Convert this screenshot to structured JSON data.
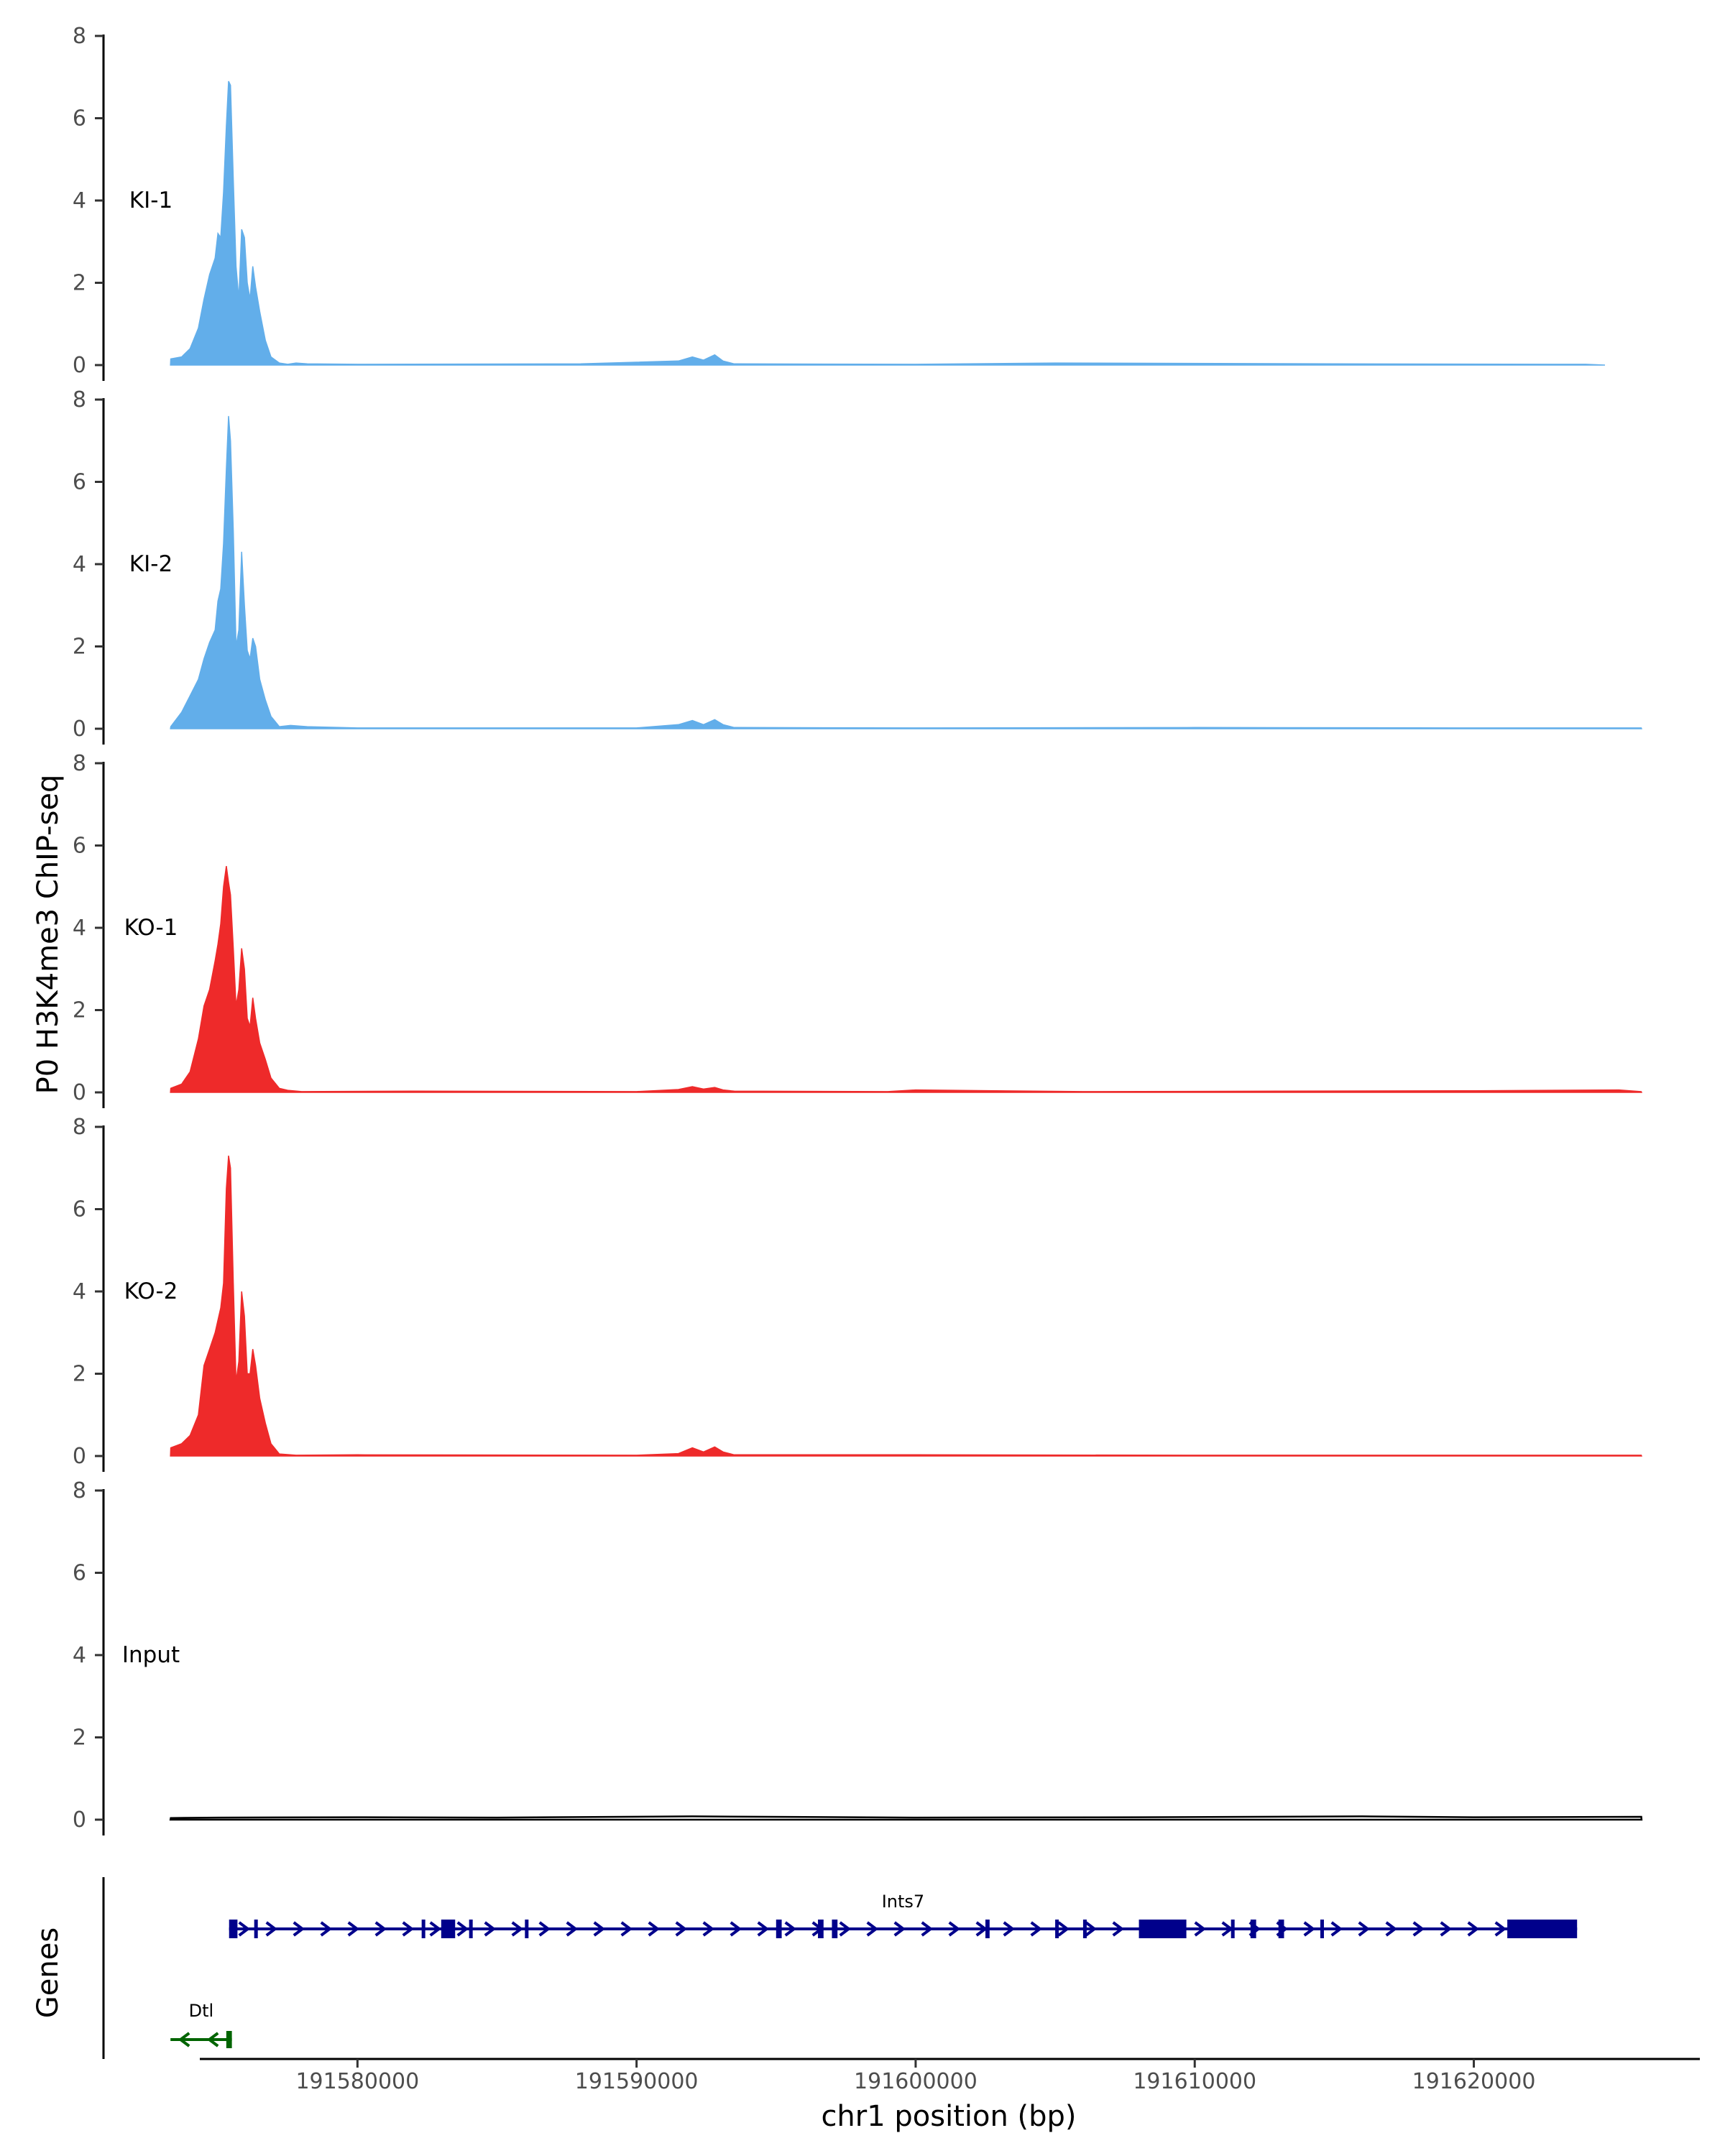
{
  "chart_data": {
    "type": "area",
    "title": "",
    "ylabel": "P0 H3K4me3 ChIP-seq",
    "xlabel": "chr1 position (bp)",
    "genes_label": "Genes",
    "ylim": [
      0,
      8
    ],
    "yticks": [
      0,
      2,
      4,
      6,
      8
    ],
    "xlim": [
      191570900,
      191629000
    ],
    "xticks": [
      191580000,
      191590000,
      191600000,
      191610000,
      191620000
    ],
    "xtick_labels": [
      "191580000",
      "191590000",
      "191600000",
      "191610000",
      "191620000"
    ],
    "colors": {
      "KI": "#62aeea",
      "KO": "#ee2a2a",
      "Input": "#000000",
      "Ints7": "#00008b",
      "Dtl": "#006400"
    },
    "tracks": [
      {
        "name": "KI-1",
        "color": "#62aeea",
        "points": [
          [
            191573300,
            0
          ],
          [
            191573310,
            0.15
          ],
          [
            191573700,
            0.2
          ],
          [
            191574000,
            0.4
          ],
          [
            191574300,
            0.9
          ],
          [
            191574500,
            1.6
          ],
          [
            191574700,
            2.2
          ],
          [
            191574900,
            2.6
          ],
          [
            191575000,
            3.2
          ],
          [
            191575100,
            3.1
          ],
          [
            191575200,
            4.2
          ],
          [
            191575300,
            5.8
          ],
          [
            191575380,
            6.9
          ],
          [
            191575450,
            6.8
          ],
          [
            191575550,
            4.5
          ],
          [
            191575650,
            2.4
          ],
          [
            191575750,
            1.6
          ],
          [
            191575850,
            3.3
          ],
          [
            191575950,
            3.1
          ],
          [
            191576050,
            2.0
          ],
          [
            191576150,
            1.6
          ],
          [
            191576250,
            2.4
          ],
          [
            191576350,
            1.9
          ],
          [
            191576500,
            1.3
          ],
          [
            191576700,
            0.6
          ],
          [
            191576900,
            0.2
          ],
          [
            191577200,
            0.05
          ],
          [
            191577500,
            0.02
          ],
          [
            191577800,
            0.05
          ],
          [
            191578200,
            0.03
          ],
          [
            191580000,
            0.02
          ],
          [
            191588000,
            0.03
          ],
          [
            191591500,
            0.1
          ],
          [
            191592000,
            0.2
          ],
          [
            191592400,
            0.12
          ],
          [
            191592800,
            0.25
          ],
          [
            191593100,
            0.1
          ],
          [
            191593500,
            0.03
          ],
          [
            191600000,
            0.02
          ],
          [
            191605000,
            0.05
          ],
          [
            191615000,
            0.03
          ],
          [
            191624000,
            0.02
          ],
          [
            191624700,
            0
          ]
        ]
      },
      {
        "name": "KI-2",
        "color": "#62aeea",
        "points": [
          [
            191573300,
            0
          ],
          [
            191573310,
            0.05
          ],
          [
            191573700,
            0.4
          ],
          [
            191574000,
            0.8
          ],
          [
            191574300,
            1.2
          ],
          [
            191574500,
            1.7
          ],
          [
            191574700,
            2.1
          ],
          [
            191574900,
            2.4
          ],
          [
            191575000,
            3.1
          ],
          [
            191575100,
            3.4
          ],
          [
            191575200,
            4.5
          ],
          [
            191575300,
            6.3
          ],
          [
            191575380,
            7.6
          ],
          [
            191575450,
            7.0
          ],
          [
            191575550,
            4.8
          ],
          [
            191575650,
            2.0
          ],
          [
            191575750,
            2.4
          ],
          [
            191575850,
            4.3
          ],
          [
            191575950,
            3.0
          ],
          [
            191576050,
            1.9
          ],
          [
            191576150,
            1.7
          ],
          [
            191576250,
            2.2
          ],
          [
            191576350,
            2.0
          ],
          [
            191576500,
            1.2
          ],
          [
            191576700,
            0.7
          ],
          [
            191576900,
            0.3
          ],
          [
            191577200,
            0.05
          ],
          [
            191577600,
            0.08
          ],
          [
            191578200,
            0.05
          ],
          [
            191580000,
            0.02
          ],
          [
            191590000,
            0.02
          ],
          [
            191591500,
            0.1
          ],
          [
            191592000,
            0.2
          ],
          [
            191592400,
            0.1
          ],
          [
            191592800,
            0.22
          ],
          [
            191593100,
            0.1
          ],
          [
            191593500,
            0.03
          ],
          [
            191600000,
            0.02
          ],
          [
            191610000,
            0.03
          ],
          [
            191620000,
            0.02
          ],
          [
            191626000,
            0.02
          ],
          [
            191626010,
            0
          ]
        ]
      },
      {
        "name": "KO-1",
        "color": "#ee2a2a",
        "points": [
          [
            191573300,
            0
          ],
          [
            191573310,
            0.1
          ],
          [
            191573700,
            0.2
          ],
          [
            191574000,
            0.5
          ],
          [
            191574300,
            1.3
          ],
          [
            191574500,
            2.1
          ],
          [
            191574700,
            2.5
          ],
          [
            191574900,
            3.2
          ],
          [
            191575000,
            3.6
          ],
          [
            191575100,
            4.1
          ],
          [
            191575200,
            5.0
          ],
          [
            191575300,
            5.5
          ],
          [
            191575380,
            5.1
          ],
          [
            191575450,
            4.8
          ],
          [
            191575550,
            3.5
          ],
          [
            191575650,
            2.1
          ],
          [
            191575750,
            2.5
          ],
          [
            191575850,
            3.5
          ],
          [
            191575950,
            3.0
          ],
          [
            191576050,
            1.8
          ],
          [
            191576150,
            1.6
          ],
          [
            191576250,
            2.3
          ],
          [
            191576350,
            1.8
          ],
          [
            191576500,
            1.2
          ],
          [
            191576700,
            0.8
          ],
          [
            191576900,
            0.35
          ],
          [
            191577200,
            0.1
          ],
          [
            191577500,
            0.05
          ],
          [
            191578000,
            0.02
          ],
          [
            191582000,
            0.03
          ],
          [
            191590000,
            0.02
          ],
          [
            191591500,
            0.07
          ],
          [
            191592000,
            0.14
          ],
          [
            191592400,
            0.08
          ],
          [
            191592800,
            0.12
          ],
          [
            191593100,
            0.06
          ],
          [
            191593500,
            0.03
          ],
          [
            191599000,
            0.02
          ],
          [
            191600000,
            0.06
          ],
          [
            191606000,
            0.02
          ],
          [
            191613000,
            0.03
          ],
          [
            191620000,
            0.04
          ],
          [
            191625200,
            0.06
          ],
          [
            191626000,
            0.02
          ],
          [
            191626010,
            0
          ]
        ]
      },
      {
        "name": "KO-2",
        "color": "#ee2a2a",
        "points": [
          [
            191573300,
            0
          ],
          [
            191573310,
            0.2
          ],
          [
            191573700,
            0.3
          ],
          [
            191574000,
            0.5
          ],
          [
            191574300,
            1.0
          ],
          [
            191574500,
            2.2
          ],
          [
            191574700,
            2.6
          ],
          [
            191574900,
            3.0
          ],
          [
            191575000,
            3.3
          ],
          [
            191575100,
            3.6
          ],
          [
            191575200,
            4.2
          ],
          [
            191575300,
            6.5
          ],
          [
            191575380,
            7.3
          ],
          [
            191575450,
            7.0
          ],
          [
            191575550,
            4.2
          ],
          [
            191575650,
            1.8
          ],
          [
            191575750,
            2.3
          ],
          [
            191575850,
            4.0
          ],
          [
            191575950,
            3.4
          ],
          [
            191576050,
            2.0
          ],
          [
            191576150,
            2.0
          ],
          [
            191576250,
            2.6
          ],
          [
            191576350,
            2.2
          ],
          [
            191576500,
            1.4
          ],
          [
            191576700,
            0.8
          ],
          [
            191576900,
            0.3
          ],
          [
            191577200,
            0.05
          ],
          [
            191577800,
            0.02
          ],
          [
            191580000,
            0.03
          ],
          [
            191590000,
            0.02
          ],
          [
            191591500,
            0.06
          ],
          [
            191592000,
            0.2
          ],
          [
            191592400,
            0.1
          ],
          [
            191592800,
            0.22
          ],
          [
            191593100,
            0.1
          ],
          [
            191593500,
            0.03
          ],
          [
            191600000,
            0.03
          ],
          [
            191610000,
            0.02
          ],
          [
            191620000,
            0.02
          ],
          [
            191626000,
            0.02
          ],
          [
            191626010,
            0
          ]
        ]
      },
      {
        "name": "Input",
        "color": "#000000",
        "points": [
          [
            191573300,
            0
          ],
          [
            191573310,
            0.04
          ],
          [
            191575000,
            0.05
          ],
          [
            191580000,
            0.06
          ],
          [
            191585000,
            0.05
          ],
          [
            191592000,
            0.08
          ],
          [
            191600000,
            0.05
          ],
          [
            191608000,
            0.06
          ],
          [
            191616000,
            0.08
          ],
          [
            191620000,
            0.06
          ],
          [
            191626000,
            0.07
          ],
          [
            191626010,
            0
          ]
        ]
      }
    ],
    "genes": [
      {
        "name": "Ints7",
        "strand": "+",
        "start": 191575400,
        "end": 191623700,
        "color": "#00008b",
        "exons": [
          [
            191575400,
            191575700
          ],
          [
            191576300,
            191576400
          ],
          [
            191582300,
            191582400
          ],
          [
            191583000,
            191583500
          ],
          [
            191584000,
            191584100
          ],
          [
            191586000,
            191586100
          ],
          [
            191595000,
            191595200
          ],
          [
            191596500,
            191596700
          ],
          [
            191597000,
            191597200
          ],
          [
            191602500,
            191602650
          ],
          [
            191605000,
            191605100
          ],
          [
            191606000,
            191606100
          ],
          [
            191608000,
            191609700
          ],
          [
            191611300,
            191611400
          ],
          [
            191612000,
            191612200
          ],
          [
            191613000,
            191613200
          ],
          [
            191614500,
            191614600
          ],
          [
            191621200,
            191623700
          ]
        ]
      },
      {
        "name": "Dtl",
        "strand": "-",
        "start": 191573300,
        "end": 191575500,
        "color": "#006400",
        "exons": [
          [
            191575300,
            191575500
          ]
        ]
      }
    ]
  }
}
